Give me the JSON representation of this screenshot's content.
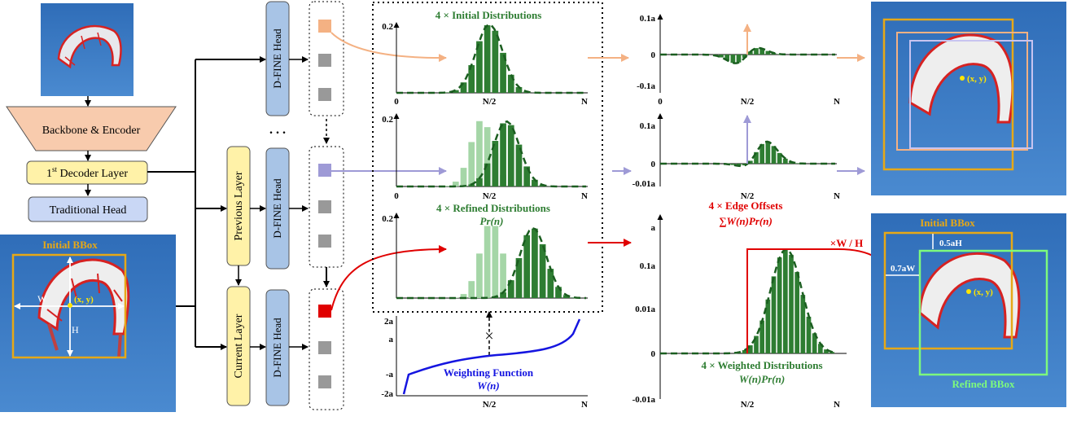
{
  "pipeline": {
    "backbone_label": "Backbone & Encoder",
    "first_decoder_label": "1",
    "first_decoder_sup": "st",
    "first_decoder_rest": " Decoder Layer",
    "traditional_head_label": "Traditional Head",
    "previous_layer_label": "Previous Layer",
    "current_layer_label": "Current Layer",
    "dfine_head_label": "D-FINE Head",
    "ellipsis": ". . ."
  },
  "input_image": {
    "bbox_title": "Initial BBox",
    "w_label": "W",
    "h_label": "H",
    "center_label": "(x, y)"
  },
  "distributions": {
    "initial_title": "4 × Initial Distributions",
    "refined_title": "4 × Refined Distributions",
    "refined_formula": "Pr(n)",
    "weighting_title": "Weighting Function",
    "weighting_formula": "W(n)",
    "multiply_symbol": "×",
    "x_ticks": [
      "0",
      "N/2",
      "N"
    ],
    "y_tick_02": "0.2",
    "w_ticks": [
      "2a",
      "a",
      "-a",
      "-2a"
    ]
  },
  "offsets": {
    "top_ticks": [
      "0.1a",
      "0",
      "-0.1a"
    ],
    "mid_ticks": [
      "0.1a",
      "0",
      "-0.01a"
    ],
    "bottom_ticks": [
      "a",
      "0.1a",
      "0.01a",
      "0",
      "-0.01a"
    ],
    "edge_title": "4 × Edge Offsets",
    "edge_formula": "∑W(n)Pr(n)",
    "scale_label": "×W / H",
    "weighted_title": "4 × Weighted Distributions",
    "weighted_formula": "W(n)Pr(n)"
  },
  "output_image": {
    "center_label": "(x, y)",
    "initial_title": "Initial BBox",
    "refined_title": "Refined BBox",
    "offset_h": "0.5aH",
    "offset_w": "0.7aW"
  },
  "colors": {
    "green_dark": "#2e7d32",
    "green_light": "#a5d6a7",
    "orange": "#f4b183",
    "purple": "#9e9ad6",
    "red": "#e00000",
    "blue": "#1515e0",
    "gold": "#e6a817",
    "bright_green": "#7dfa7d",
    "sky": "#3a78c2"
  },
  "chart_data": [
    {
      "type": "bar",
      "name": "initial",
      "x": [
        "0",
        "N/2",
        "N"
      ],
      "peak_x": "N/2",
      "peak_y": 0.2
    },
    {
      "type": "bar",
      "name": "refined",
      "x": [
        "0",
        "N/2",
        "N"
      ],
      "peak_x": "0.6N",
      "peak_y": 0.2
    },
    {
      "type": "line",
      "name": "weighting",
      "x": [
        "0",
        "N/2",
        "N"
      ],
      "ylim": [
        "-2a",
        "2a"
      ]
    }
  ]
}
